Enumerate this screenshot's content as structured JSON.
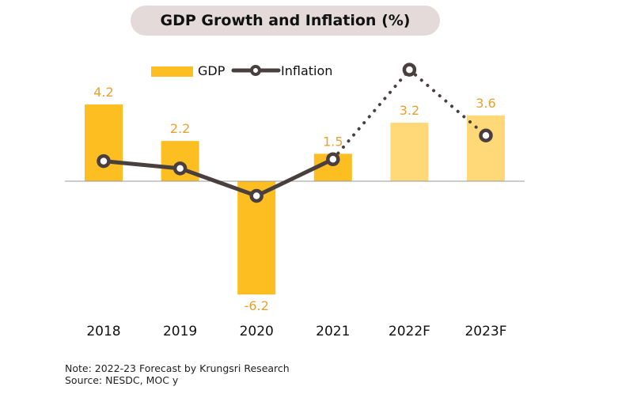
{
  "chart_data": {
    "type": "bar",
    "title": "GDP Growth and Inflation (%)",
    "categories": [
      "2018",
      "2019",
      "2020",
      "2021",
      "2022F",
      "2023F"
    ],
    "series": [
      {
        "name": "GDP",
        "type": "bar",
        "values": [
          4.2,
          2.2,
          -6.2,
          1.5,
          3.2,
          3.6
        ],
        "labels": [
          "4.2",
          "2.2",
          "-6.2",
          "1.5",
          "3.2",
          "3.6"
        ]
      },
      {
        "name": "Inflation",
        "type": "line",
        "values": [
          1.1,
          0.7,
          -0.8,
          1.2,
          6.1,
          2.5
        ]
      }
    ],
    "forecast_categories": [
      "2022F",
      "2023F"
    ],
    "legend_placement": "top",
    "grid": false,
    "colors": {
      "gdp": "#FDBE22",
      "gdp_forecast": "#FFD878",
      "inflation": "#4A3F3F",
      "label": "#E8A030"
    }
  },
  "notes": {
    "note": "Note: 2022-23 Forecast by Krungsri Research",
    "source": "Source: NESDC, MOC y"
  }
}
